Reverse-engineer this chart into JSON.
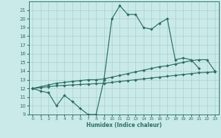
{
  "title": "",
  "xlabel": "Humidex (Indice chaleur)",
  "x": [
    0,
    1,
    2,
    3,
    4,
    5,
    6,
    7,
    8,
    9,
    10,
    11,
    12,
    13,
    14,
    15,
    16,
    17,
    18,
    19,
    20,
    21,
    22,
    23
  ],
  "line1": [
    12.0,
    11.7,
    11.5,
    10.0,
    11.2,
    10.5,
    9.7,
    9.0,
    9.0,
    13.0,
    20.0,
    21.5,
    20.5,
    20.5,
    19.0,
    18.8,
    19.5,
    20.0,
    15.3,
    15.5,
    15.3,
    14.3,
    null,
    null
  ],
  "line2": [
    12.0,
    12.2,
    12.4,
    12.6,
    12.7,
    12.8,
    12.9,
    13.0,
    13.0,
    13.1,
    13.3,
    13.5,
    13.7,
    13.9,
    14.1,
    14.3,
    14.5,
    14.6,
    14.8,
    15.0,
    15.2,
    15.3,
    15.3,
    14.0
  ],
  "line3": [
    12.0,
    12.1,
    12.2,
    12.3,
    12.35,
    12.4,
    12.45,
    12.5,
    12.55,
    12.6,
    12.7,
    12.8,
    12.9,
    13.0,
    13.1,
    13.2,
    13.3,
    13.4,
    13.5,
    13.6,
    13.7,
    13.8,
    13.85,
    13.9
  ],
  "line_color": "#2d6e63",
  "bg_color": "#c9eae9",
  "grid_color": "#a8ceca",
  "xlim": [
    -0.5,
    23.5
  ],
  "ylim": [
    9,
    22
  ],
  "yticks": [
    9,
    10,
    11,
    12,
    13,
    14,
    15,
    16,
    17,
    18,
    19,
    20,
    21
  ],
  "xticks": [
    0,
    1,
    2,
    3,
    4,
    5,
    6,
    7,
    8,
    9,
    10,
    11,
    12,
    13,
    14,
    15,
    16,
    17,
    18,
    19,
    20,
    21,
    22,
    23
  ],
  "markersize": 2.0,
  "linewidth": 0.9
}
